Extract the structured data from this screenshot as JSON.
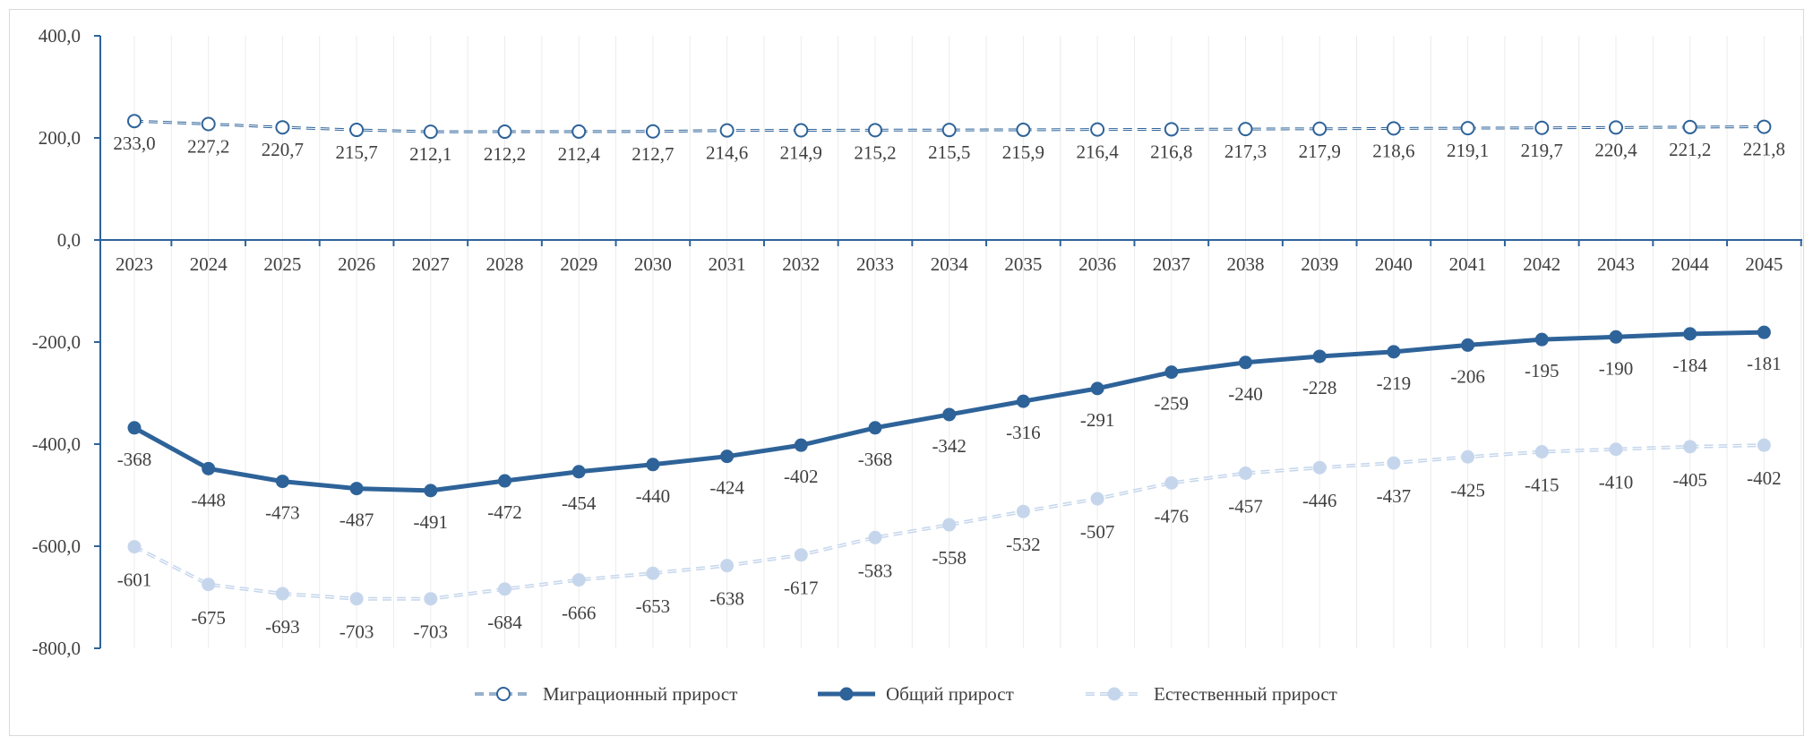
{
  "chart_data": {
    "type": "line",
    "title": "",
    "xlabel": "",
    "ylabel": "",
    "ylim": [
      -800,
      400
    ],
    "y_ticks": [
      400,
      200,
      0,
      -200,
      -400,
      -600,
      -800
    ],
    "y_tick_labels": [
      "400,0",
      "200,0",
      "0,0",
      "-200,0",
      "-400,0",
      "-600,0",
      "-800,0"
    ],
    "grid": "vertical",
    "legend_position": "bottom",
    "x": [
      "2023",
      "2024",
      "2025",
      "2026",
      "2027",
      "2028",
      "2029",
      "2030",
      "2031",
      "2032",
      "2033",
      "2034",
      "2035",
      "2036",
      "2037",
      "2038",
      "2039",
      "2040",
      "2041",
      "2042",
      "2043",
      "2044",
      "2045"
    ],
    "series": [
      {
        "name": "Миграционный прирост",
        "style": "dashed-hollow-marker",
        "color": "#2E6399",
        "values": [
          233.0,
          227.2,
          220.7,
          215.7,
          212.1,
          212.2,
          212.4,
          212.7,
          214.6,
          214.9,
          215.2,
          215.5,
          215.9,
          216.4,
          216.8,
          217.3,
          217.9,
          218.6,
          219.1,
          219.7,
          220.4,
          221.2,
          221.8
        ],
        "labels": [
          "233,0",
          "227,2",
          "220,7",
          "215,7",
          "212,1",
          "212,2",
          "212,4",
          "212,7",
          "214,6",
          "214,9",
          "215,2",
          "215,5",
          "215,9",
          "216,4",
          "216,8",
          "217,3",
          "217,9",
          "218,6",
          "219,1",
          "219,7",
          "220,4",
          "221,2",
          "221,8"
        ]
      },
      {
        "name": "Общий прирост",
        "style": "solid-filled-marker",
        "color": "#2E6399",
        "values": [
          -368,
          -448,
          -473,
          -487,
          -491,
          -472,
          -454,
          -440,
          -424,
          -402,
          -368,
          -342,
          -316,
          -291,
          -259,
          -240,
          -228,
          -219,
          -206,
          -195,
          -190,
          -184,
          -181
        ],
        "labels": [
          "-368",
          "-448",
          "-473",
          "-487",
          "-491",
          "-472",
          "-454",
          "-440",
          "-424",
          "-402",
          "-368",
          "-342",
          "-316",
          "-291",
          "-259",
          "-240",
          "-228",
          "-219",
          "-206",
          "-195",
          "-190",
          "-184",
          "-181"
        ]
      },
      {
        "name": "Естественный прирост",
        "style": "dashed-light-filled-marker",
        "color": "#C5D6EC",
        "values": [
          -601,
          -675,
          -693,
          -703,
          -703,
          -684,
          -666,
          -653,
          -638,
          -617,
          -583,
          -558,
          -532,
          -507,
          -476,
          -457,
          -446,
          -437,
          -425,
          -415,
          -410,
          -405,
          -402
        ],
        "labels": [
          "-601",
          "-675",
          "-693",
          "-703",
          "-703",
          "-684",
          "-666",
          "-653",
          "-638",
          "-617",
          "-583",
          "-558",
          "-532",
          "-507",
          "-476",
          "-457",
          "-446",
          "-437",
          "-425",
          "-415",
          "-410",
          "-405",
          "-402"
        ]
      }
    ]
  }
}
